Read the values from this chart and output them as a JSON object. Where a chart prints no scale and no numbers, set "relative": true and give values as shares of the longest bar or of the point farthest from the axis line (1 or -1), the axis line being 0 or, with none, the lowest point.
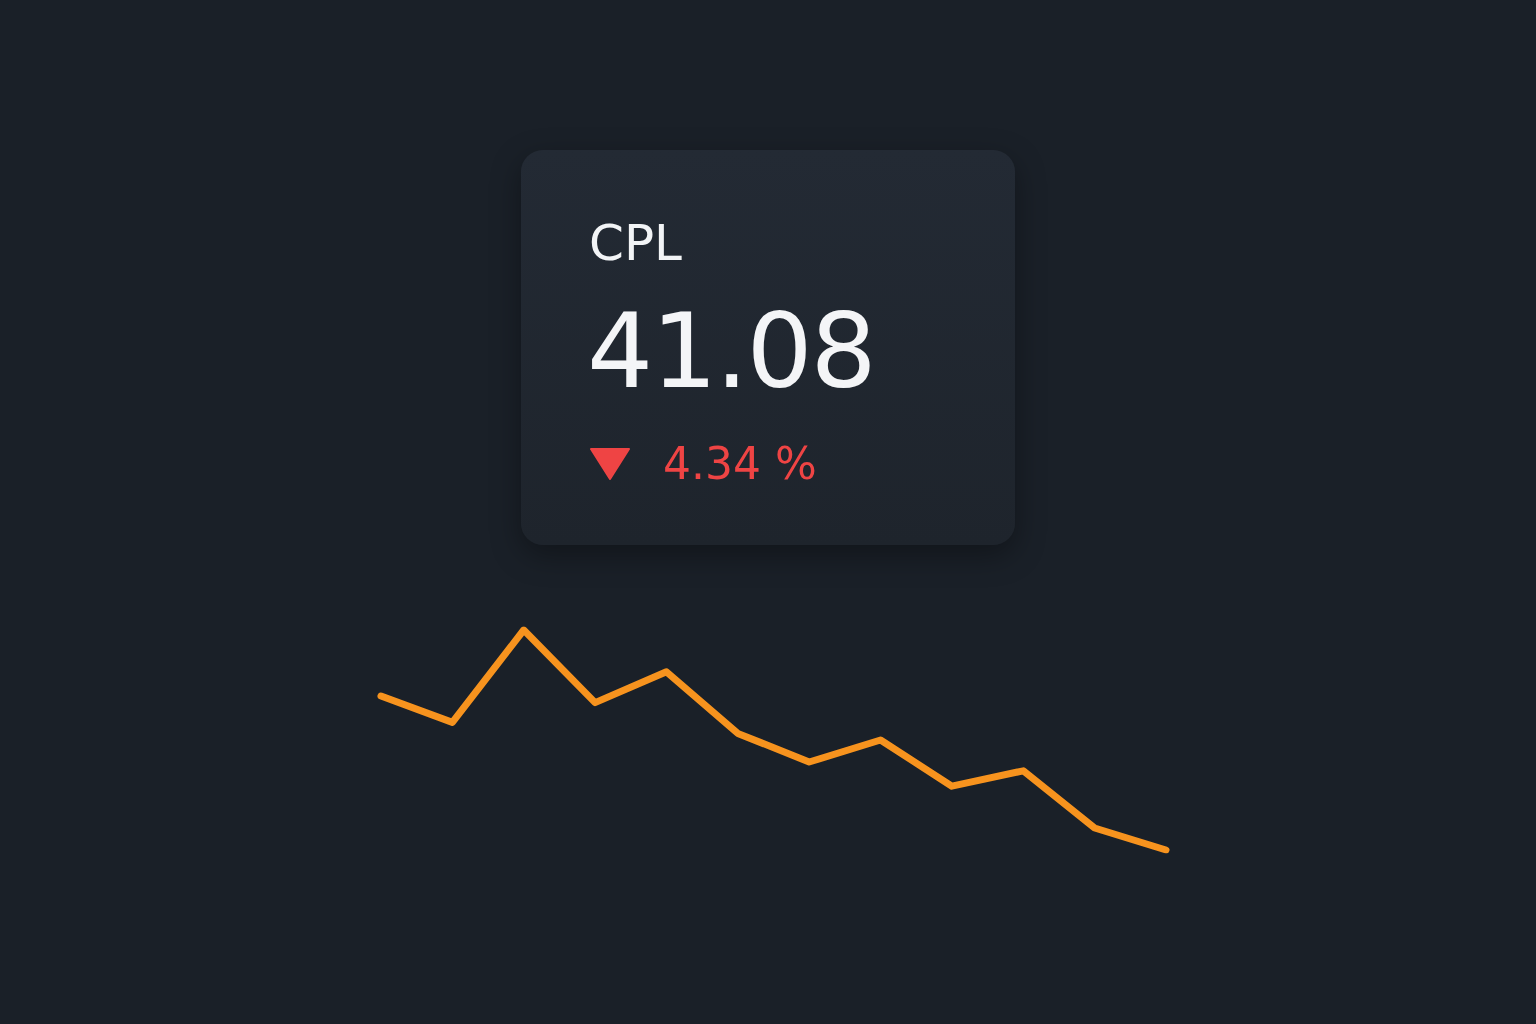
{
  "chart_data": [
    {
      "type": "other",
      "title": "CPL",
      "annotations": [
        "41.08",
        "4.34 %"
      ]
    },
    {
      "type": "line",
      "relative": true,
      "marker": "none",
      "categories": [
        null,
        null,
        null,
        null,
        null,
        null,
        null,
        null,
        null,
        null,
        null,
        null
      ],
      "series": [
        {
          "color": "#f7931e",
          "values": [
            0.7,
            0.58,
            1,
            0.67,
            0.81,
            0.53,
            0.4,
            0.5,
            0.29,
            0.36,
            0.1,
            0
          ]
        }
      ]
    }
  ]
}
